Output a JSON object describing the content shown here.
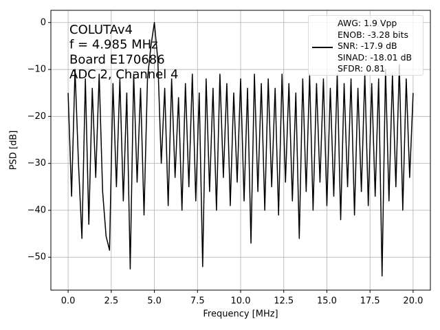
{
  "chart_data": {
    "type": "line",
    "xlabel": "Frequency [MHz]",
    "ylabel": "PSD [dB]",
    "annotations": [
      "COLUTAv4",
      "f = 4.985 MHz",
      "Board E170686",
      "ADC 2, Channel 4"
    ],
    "x": [
      0,
      0.2,
      0.4,
      0.6,
      0.8,
      1.0,
      1.2,
      1.4,
      1.6,
      1.8,
      2.0,
      2.2,
      2.4,
      2.6,
      2.8,
      3.0,
      3.2,
      3.4,
      3.6,
      3.8,
      4.0,
      4.2,
      4.4,
      4.6,
      4.8,
      5.0,
      5.2,
      5.4,
      5.6,
      5.8,
      6.0,
      6.2,
      6.4,
      6.6,
      6.8,
      7.0,
      7.2,
      7.4,
      7.6,
      7.8,
      8.0,
      8.2,
      8.4,
      8.6,
      8.8,
      9.0,
      9.2,
      9.4,
      9.6,
      9.8,
      10.0,
      10.2,
      10.4,
      10.6,
      10.8,
      11.0,
      11.2,
      11.4,
      11.6,
      11.8,
      12.0,
      12.2,
      12.4,
      12.6,
      12.8,
      13.0,
      13.2,
      13.4,
      13.6,
      13.8,
      14.0,
      14.2,
      14.4,
      14.6,
      14.8,
      15.0,
      15.2,
      15.4,
      15.6,
      15.8,
      16.0,
      16.2,
      16.4,
      16.6,
      16.8,
      17.0,
      17.2,
      17.4,
      17.6,
      17.8,
      18.0,
      18.2,
      18.4,
      18.6,
      18.8,
      19.0,
      19.2,
      19.4,
      19.6,
      19.8,
      20.0
    ],
    "series": [
      {
        "name": "AWG: 1.9 Vpp\nENOB: -3.28 bits\nSNR: -17.9 dB\nSINAD: -18.01 dB\nSFDR: 0.81",
        "color": "#000000",
        "values": [
          -15,
          -37,
          -10,
          -30,
          -46,
          -12,
          -43,
          -14,
          -33,
          -11,
          -36,
          -45.5,
          -48.5,
          -13,
          -35,
          -12,
          -38,
          -15,
          -52.5,
          -11,
          -34,
          -14,
          -41,
          -12,
          -5,
          0,
          -8,
          -30,
          -14,
          -39,
          -12,
          -33,
          -16,
          -40,
          -13,
          -35,
          -11,
          -38,
          -15,
          -52,
          -12,
          -36,
          -14,
          -40,
          -11,
          -33,
          -13,
          -39,
          -15,
          -34,
          -12,
          -38,
          -14,
          -47,
          -11,
          -36,
          -13,
          -40,
          -12,
          -35,
          -14,
          -41,
          -11,
          -34,
          -13,
          -38,
          -15,
          -46,
          -12,
          -36,
          -11,
          -40,
          -13,
          -34,
          -12,
          -39,
          -14,
          -37,
          -11,
          -42,
          -13,
          -35,
          -12,
          -41,
          -14,
          -36,
          -11,
          -39,
          -13,
          -37,
          -12,
          -54,
          -10,
          -38,
          -11,
          -35,
          -9,
          -40,
          -12,
          -33,
          -15
        ]
      }
    ],
    "xlim": [
      -1,
      21
    ],
    "ylim": [
      -57,
      2.6
    ],
    "xticks": [
      {
        "value": 0,
        "label": "0.0"
      },
      {
        "value": 2.5,
        "label": "2.5"
      },
      {
        "value": 5,
        "label": "5.0"
      },
      {
        "value": 7.5,
        "label": "7.5"
      },
      {
        "value": 10,
        "label": "10.0"
      },
      {
        "value": 12.5,
        "label": "12.5"
      },
      {
        "value": 15,
        "label": "15.0"
      },
      {
        "value": 17.5,
        "label": "17.5"
      },
      {
        "value": 20,
        "label": "20.0"
      }
    ],
    "yticks": [
      {
        "value": -50,
        "label": "−50"
      },
      {
        "value": -40,
        "label": "−40"
      },
      {
        "value": -30,
        "label": "−30"
      },
      {
        "value": -20,
        "label": "−20"
      },
      {
        "value": -10,
        "label": "−10"
      },
      0
    ],
    "grid": true,
    "legend": "upper right"
  }
}
